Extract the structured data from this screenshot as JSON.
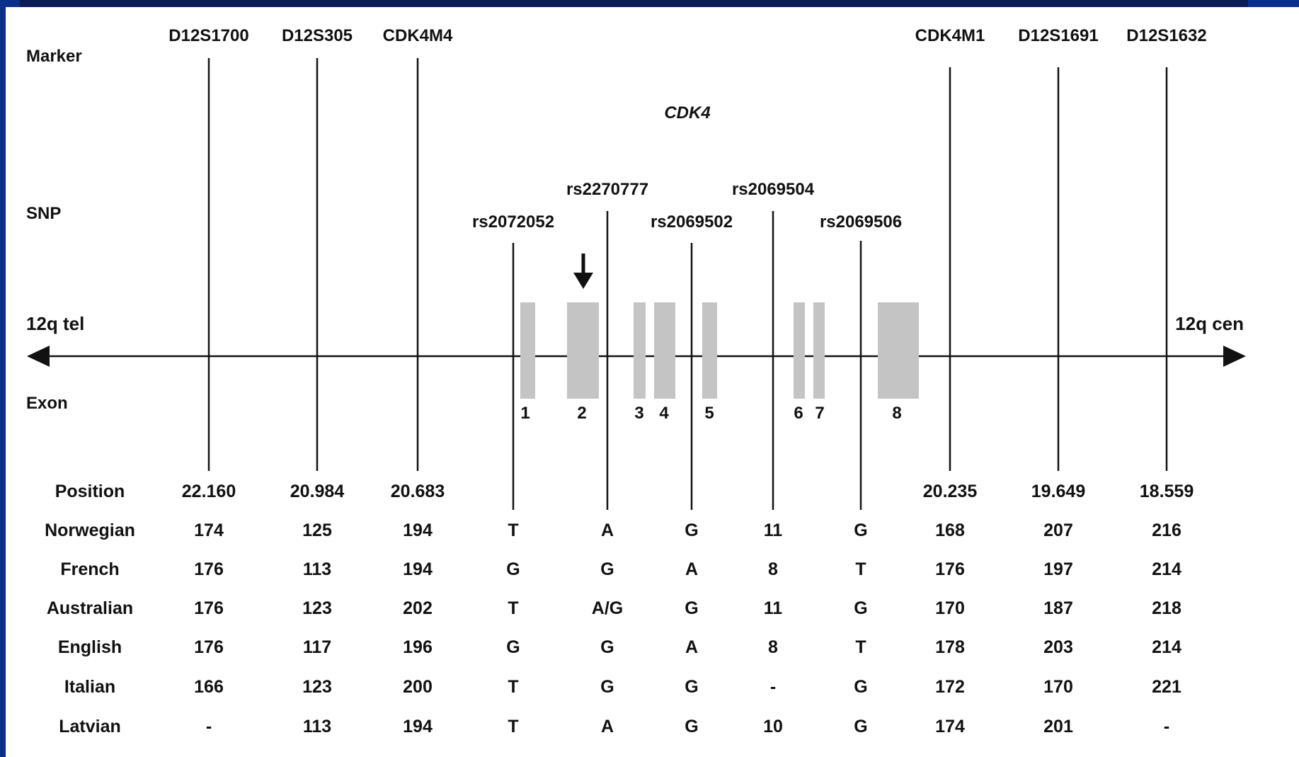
{
  "row_labels": {
    "marker": "Marker",
    "snp": "SNP",
    "tel": "12q tel",
    "cen": "12q cen",
    "exon": "Exon",
    "gene": "CDK4"
  },
  "markers": [
    "D12S1700",
    "D12S305",
    "CDK4M4",
    "CDK4M1",
    "D12S1691",
    "D12S1632"
  ],
  "snps": [
    "rs2072052",
    "rs2270777",
    "rs2069502",
    "rs2069504",
    "rs2069506"
  ],
  "exons": [
    "1",
    "2",
    "3",
    "4",
    "5",
    "6",
    "7",
    "8"
  ],
  "table": {
    "header": [
      "",
      "",
      "",
      "",
      "",
      "",
      "",
      "",
      "",
      "",
      ""
    ],
    "rows": [
      {
        "label": "Position",
        "values": [
          "22.160",
          "20.984",
          "20.683",
          "",
          "",
          "",
          "",
          "",
          "20.235",
          "19.649",
          "18.559"
        ]
      },
      {
        "label": "Norwegian",
        "values": [
          "174",
          "125",
          "194",
          "T",
          "A",
          "G",
          "11",
          "G",
          "168",
          "207",
          "216"
        ]
      },
      {
        "label": "French",
        "values": [
          "176",
          "113",
          "194",
          "G",
          "G",
          "A",
          "8",
          "T",
          "176",
          "197",
          "214"
        ]
      },
      {
        "label": "Australian",
        "values": [
          "176",
          "123",
          "202",
          "T",
          "A/G",
          "G",
          "11",
          "G",
          "170",
          "187",
          "218"
        ]
      },
      {
        "label": "English",
        "values": [
          "176",
          "117",
          "196",
          "G",
          "G",
          "A",
          "8",
          "T",
          "178",
          "203",
          "214"
        ]
      },
      {
        "label": "Italian",
        "values": [
          "166",
          "123",
          "200",
          "T",
          "G",
          "G",
          "-",
          "G",
          "172",
          "170",
          "221"
        ]
      },
      {
        "label": "Latvian",
        "values": [
          "-",
          "113",
          "194",
          "T",
          "A",
          "G",
          "10",
          "G",
          "174",
          "201",
          "-"
        ]
      }
    ]
  }
}
